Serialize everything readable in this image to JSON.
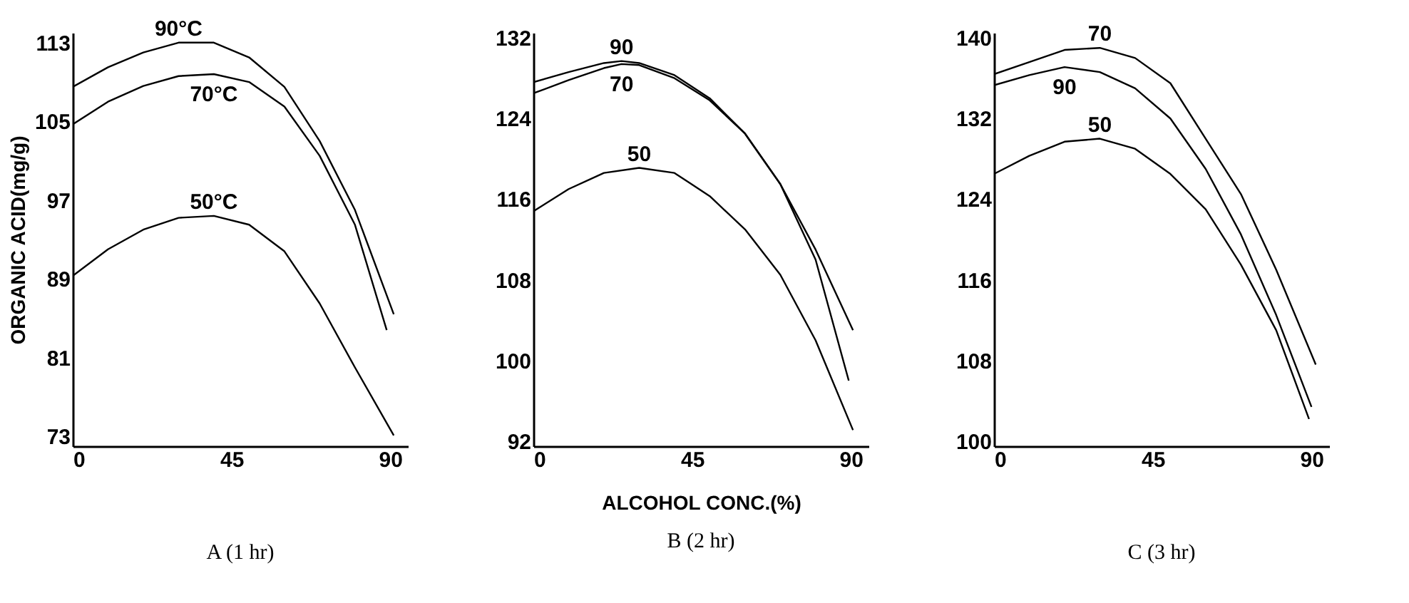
{
  "chart_data": [
    {
      "type": "line",
      "title": "A (1 hr)",
      "ylabel": "ORGANIC ACID(mg/g)",
      "xlim": [
        0,
        95
      ],
      "xticks": [
        0,
        45,
        90
      ],
      "ylim": [
        72,
        114
      ],
      "yticks": [
        73,
        81,
        89,
        97,
        105,
        113
      ],
      "grid": false,
      "legend": false,
      "marker": "none",
      "line_style": "solid",
      "series": [
        {
          "name": "90°C",
          "color": "#000000",
          "x": [
            0,
            10,
            20,
            30,
            40,
            50,
            60,
            70,
            80,
            91
          ],
          "values": [
            108.5,
            110.5,
            112,
            113,
            113,
            111.5,
            108.5,
            103,
            96,
            85.4
          ]
        },
        {
          "name": "70°C",
          "color": "#000000",
          "x": [
            0,
            10,
            20,
            30,
            40,
            50,
            60,
            70,
            80,
            89
          ],
          "values": [
            104.7,
            107,
            108.6,
            109.6,
            109.8,
            109,
            106.5,
            101.5,
            94.5,
            83.8
          ]
        },
        {
          "name": "50°C",
          "color": "#000000",
          "x": [
            0,
            10,
            20,
            30,
            40,
            50,
            60,
            70,
            80,
            91
          ],
          "values": [
            89.3,
            92,
            94,
            95.2,
            95.4,
            94.5,
            91.8,
            86.5,
            80,
            73.1
          ]
        }
      ]
    },
    {
      "type": "line",
      "title": "B (2 hr)",
      "xlabel": "ALCOHOL CONC.(%)",
      "xlim": [
        0,
        95
      ],
      "xticks": [
        0,
        45,
        90
      ],
      "ylim": [
        91.5,
        132.5
      ],
      "yticks": [
        92,
        100,
        108,
        116,
        124,
        132
      ],
      "grid": false,
      "legend": false,
      "marker": "none",
      "line_style": "solid",
      "series": [
        {
          "name": "90",
          "color": "#000000",
          "x": [
            0,
            10,
            20,
            25,
            30,
            40,
            50,
            60,
            70,
            80,
            90.6
          ],
          "values": [
            127.6,
            128.6,
            129.5,
            129.7,
            129.5,
            128.3,
            126,
            122.5,
            117.5,
            111,
            103
          ]
        },
        {
          "name": "70",
          "color": "#000000",
          "x": [
            0,
            10,
            20,
            25,
            30,
            40,
            50,
            60,
            70,
            80,
            89.4
          ],
          "values": [
            126.5,
            127.8,
            129,
            129.4,
            129.3,
            128,
            125.8,
            122.5,
            117.5,
            110,
            98
          ]
        },
        {
          "name": "50",
          "color": "#000000",
          "x": [
            0,
            10,
            20,
            30,
            40,
            50,
            60,
            70,
            80,
            90.6
          ],
          "values": [
            114.8,
            117,
            118.6,
            119.1,
            118.6,
            116.3,
            113,
            108.5,
            102,
            93.1
          ]
        }
      ]
    },
    {
      "type": "line",
      "title": "C (3 hr)",
      "xlim": [
        0,
        95
      ],
      "xticks": [
        0,
        45,
        90
      ],
      "ylim": [
        99.5,
        140.5
      ],
      "yticks": [
        100,
        108,
        116,
        124,
        132,
        140
      ],
      "grid": false,
      "legend": false,
      "marker": "none",
      "line_style": "solid",
      "series": [
        {
          "name": "70",
          "color": "#000000",
          "x": [
            0,
            10,
            20,
            30,
            40,
            50,
            60,
            70,
            80,
            91.2
          ],
          "values": [
            136.4,
            137.6,
            138.8,
            139,
            138,
            135.5,
            130,
            124.5,
            117,
            107.6
          ]
        },
        {
          "name": "90",
          "color": "#000000",
          "x": [
            0,
            10,
            20,
            30,
            40,
            50,
            60,
            70,
            80,
            90
          ],
          "values": [
            135.3,
            136.3,
            137.1,
            136.6,
            135,
            132,
            127,
            120.5,
            112.5,
            103.4
          ]
        },
        {
          "name": "50",
          "color": "#000000",
          "x": [
            0,
            10,
            20,
            30,
            40,
            50,
            60,
            70,
            80,
            89.3
          ],
          "values": [
            126.5,
            128.3,
            129.7,
            130,
            129,
            126.5,
            123,
            117.5,
            111,
            102.2
          ]
        }
      ]
    }
  ]
}
